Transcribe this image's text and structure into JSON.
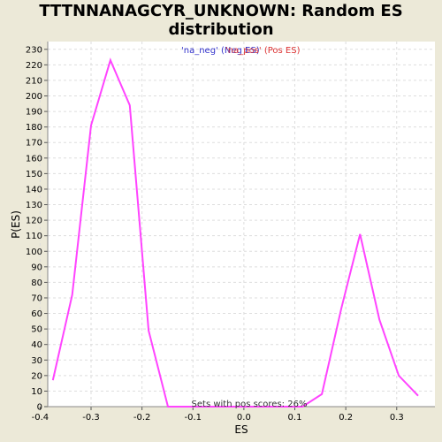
{
  "chart_data": {
    "type": "line",
    "title_line1": "TTTNNANAGCYR_UNKNOWN: Random ES",
    "title_line2": "distribution",
    "xlabel": "ES",
    "ylabel": "P(ES)",
    "xlim": [
      -0.385,
      0.375
    ],
    "ylim": [
      0,
      235
    ],
    "x_ticks": [
      -0.4,
      -0.3,
      -0.2,
      -0.1,
      0.0,
      0.1,
      0.2,
      0.3
    ],
    "x_tick_labels": [
      "-0.4",
      "-0.3",
      "-0.2",
      "-0.1",
      "0.0",
      "0.1",
      "0.2",
      "0.3"
    ],
    "y_ticks": [
      0,
      10,
      20,
      30,
      40,
      50,
      60,
      70,
      80,
      90,
      100,
      110,
      120,
      130,
      140,
      150,
      160,
      170,
      180,
      190,
      200,
      210,
      220,
      230
    ],
    "grid": true,
    "legend": [
      {
        "label": "'na_neg' (Neg ES)",
        "color": "#3333cc"
      },
      {
        "label": "'na_pos' (Pos ES)",
        "color": "#dd3333"
      }
    ],
    "annotation": "Sets with pos scores: 26%",
    "series": [
      {
        "color": "#ff44ff",
        "x": [
          -0.375,
          -0.337,
          -0.3,
          -0.262,
          -0.224,
          -0.187,
          -0.149,
          -0.111,
          -0.074,
          -0.036,
          0.002,
          0.04,
          0.077,
          0.115,
          0.153,
          0.191,
          0.228,
          0.266,
          0.304,
          0.342
        ],
        "y": [
          17,
          72,
          181,
          223,
          194,
          49,
          0,
          0,
          0,
          0,
          0,
          0,
          0,
          0,
          8,
          63,
          111,
          56,
          20,
          7
        ]
      }
    ]
  }
}
